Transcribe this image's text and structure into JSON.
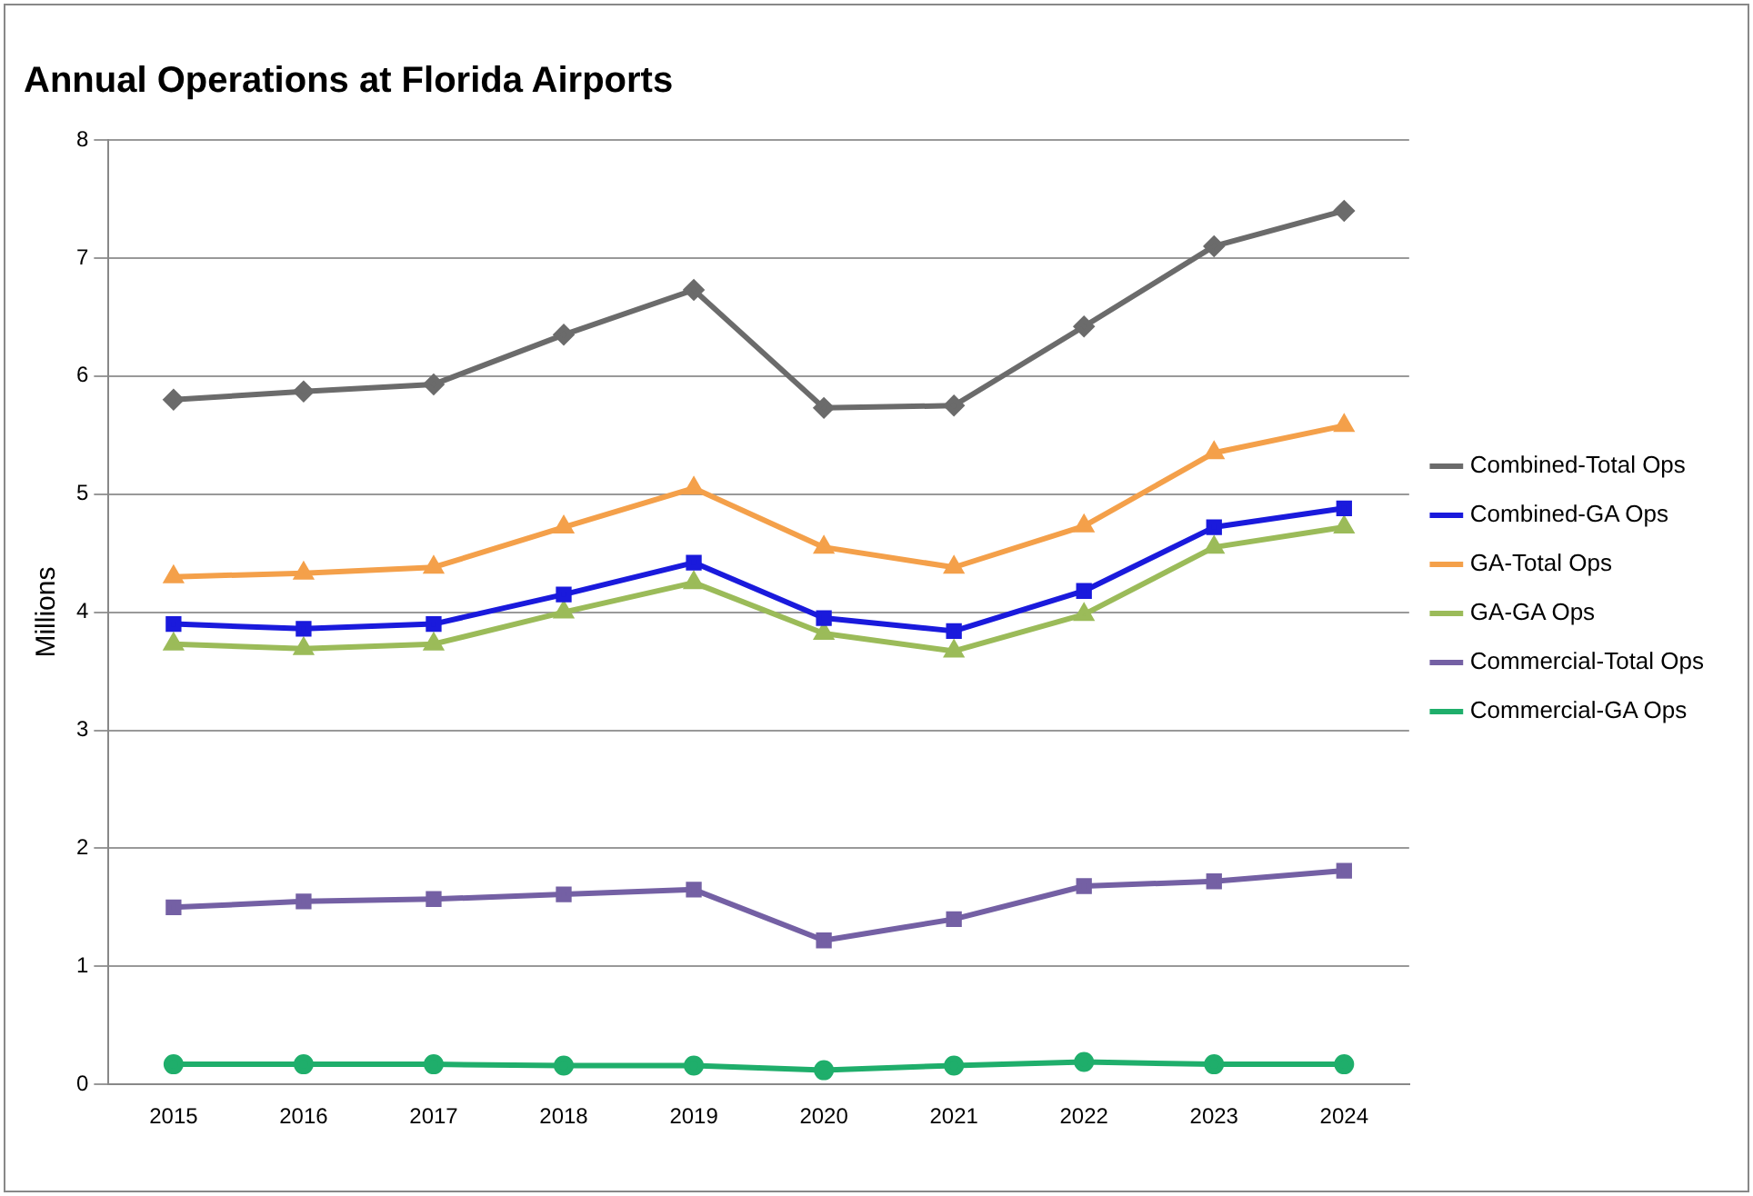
{
  "chart_data": {
    "type": "line",
    "title": "Annual Operations at Florida Airports",
    "ylabel": "Millions",
    "categories": [
      "2015",
      "2016",
      "2017",
      "2018",
      "2019",
      "2020",
      "2021",
      "2022",
      "2023",
      "2024"
    ],
    "series": [
      {
        "name": "Combined-Total Ops",
        "color": "#6b6b6b",
        "marker": "diamond",
        "values": [
          5.8,
          5.87,
          5.93,
          6.35,
          6.73,
          5.73,
          5.75,
          6.42,
          7.1,
          7.4
        ]
      },
      {
        "name": "Combined-GA Ops",
        "color": "#1a1adc",
        "marker": "square",
        "values": [
          3.9,
          3.86,
          3.9,
          4.15,
          4.42,
          3.95,
          3.84,
          4.18,
          4.72,
          4.88
        ]
      },
      {
        "name": "GA-Total Ops",
        "color": "#f4a04a",
        "marker": "triangle",
        "values": [
          4.3,
          4.33,
          4.38,
          4.72,
          5.05,
          4.55,
          4.38,
          4.73,
          5.35,
          5.58
        ]
      },
      {
        "name": "GA-GA Ops",
        "color": "#9bbb59",
        "marker": "triangle",
        "values": [
          3.73,
          3.69,
          3.73,
          4.0,
          4.25,
          3.82,
          3.67,
          3.98,
          4.55,
          4.72
        ]
      },
      {
        "name": "Commercial-Total Ops",
        "color": "#7460a4",
        "marker": "square",
        "values": [
          1.5,
          1.55,
          1.57,
          1.61,
          1.65,
          1.22,
          1.4,
          1.68,
          1.72,
          1.81
        ]
      },
      {
        "name": "Commercial-GA Ops",
        "color": "#1fae6b",
        "marker": "circle",
        "values": [
          0.17,
          0.17,
          0.17,
          0.16,
          0.16,
          0.12,
          0.16,
          0.19,
          0.17,
          0.17
        ]
      }
    ],
    "ylim": [
      0,
      8
    ],
    "yticks": [
      0,
      1,
      2,
      3,
      4,
      5,
      6,
      7,
      8
    ],
    "grid": "y",
    "legend": "right",
    "line_style": "solid"
  }
}
